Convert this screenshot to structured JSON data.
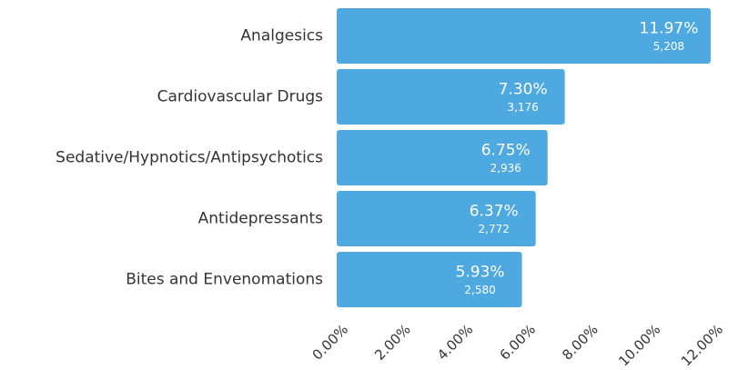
{
  "chart_data": {
    "type": "bar",
    "orientation": "horizontal",
    "categories": [
      "Analgesics",
      "Cardiovascular Drugs",
      "Sedative/Hypnotics/Antipsychotics",
      "Antidepressants",
      "Bites and Envenomations"
    ],
    "values": [
      11.97,
      7.3,
      6.75,
      6.37,
      5.93
    ],
    "value_labels": [
      "11.97%",
      "7.30%",
      "6.75%",
      "6.37%",
      "5.93%"
    ],
    "counts": [
      5208,
      3176,
      2936,
      2772,
      2580
    ],
    "count_labels": [
      "5,208",
      "3,176",
      "2,936",
      "2,772",
      "2,580"
    ],
    "color": "#4ea9e1",
    "xlim": [
      0,
      12
    ],
    "xticks": [
      {
        "value": 0,
        "label": "0.00%"
      },
      {
        "value": 2,
        "label": "2.00%"
      },
      {
        "value": 4,
        "label": "4.00%"
      },
      {
        "value": 6,
        "label": "6.00%"
      },
      {
        "value": 8,
        "label": "8.00%"
      },
      {
        "value": 10,
        "label": "10.00%"
      },
      {
        "value": 12,
        "label": "12.00%"
      }
    ],
    "grid": false
  }
}
